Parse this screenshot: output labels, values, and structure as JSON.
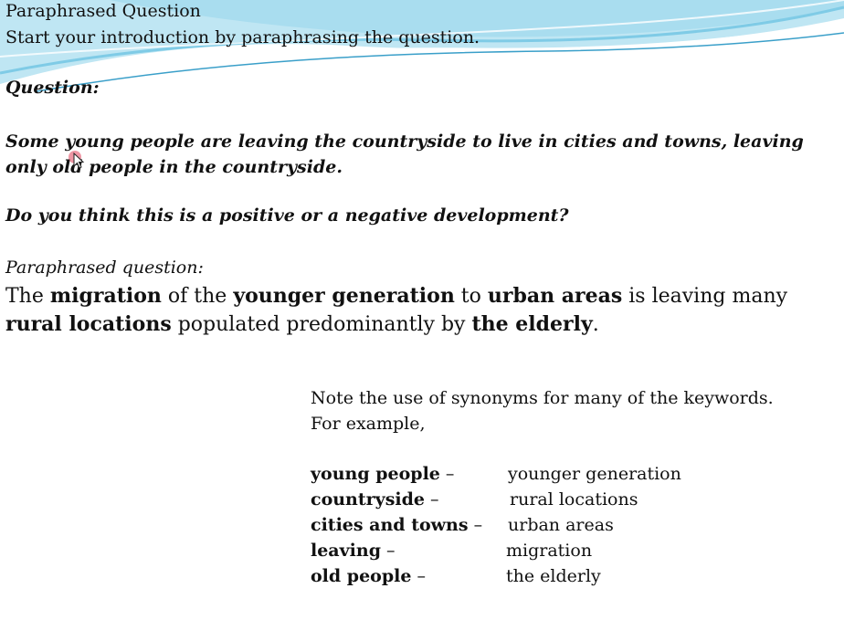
{
  "slide": {
    "title": "Paraphrased Question",
    "subtitle": "Start your introduction by paraphrasing the question."
  },
  "question": {
    "label": "Question:",
    "text": "Some young people are leaving the countryside to live in cities and towns, leaving only old people in the countryside.",
    "prompt": "Do you think this is a positive or a negative development?"
  },
  "paraphrase": {
    "label": "Paraphrased question:",
    "segments": [
      {
        "text": " The ",
        "bold": false
      },
      {
        "text": "migration",
        "bold": true
      },
      {
        "text": " of the ",
        "bold": false
      },
      {
        "text": "younger generation",
        "bold": true
      },
      {
        "text": " to ",
        "bold": false
      },
      {
        "text": "urban areas",
        "bold": true
      },
      {
        "text": " is leaving many ",
        "bold": false
      },
      {
        "text": "rural locations",
        "bold": true
      },
      {
        "text": " populated predominantly by ",
        "bold": false
      },
      {
        "text": "the elderly",
        "bold": true
      },
      {
        "text": ".",
        "bold": false
      }
    ]
  },
  "note": {
    "line1": "Note the use of synonyms for many of the keywords.",
    "line2": "For example,"
  },
  "synonyms": [
    {
      "term": "young people",
      "dash": " –",
      "synonym": "younger generation"
    },
    {
      "term": "countryside",
      "dash": " –",
      "synonym": "rural locations"
    },
    {
      "term": "cities and towns",
      "dash": " –",
      "synonym": "urban areas"
    },
    {
      "term": "leaving",
      "dash": " –",
      "synonym": "migration"
    },
    {
      "term": "old people",
      "dash": " –",
      "synonym": "the elderly"
    }
  ],
  "colors": {
    "wave_light": "#bfe6f3",
    "wave_mid": "#7fcbe6",
    "wave_dark": "#3a9fc9",
    "cursor": "#e0405a"
  },
  "icons": {
    "cursor": "mouse-pointer-icon"
  }
}
